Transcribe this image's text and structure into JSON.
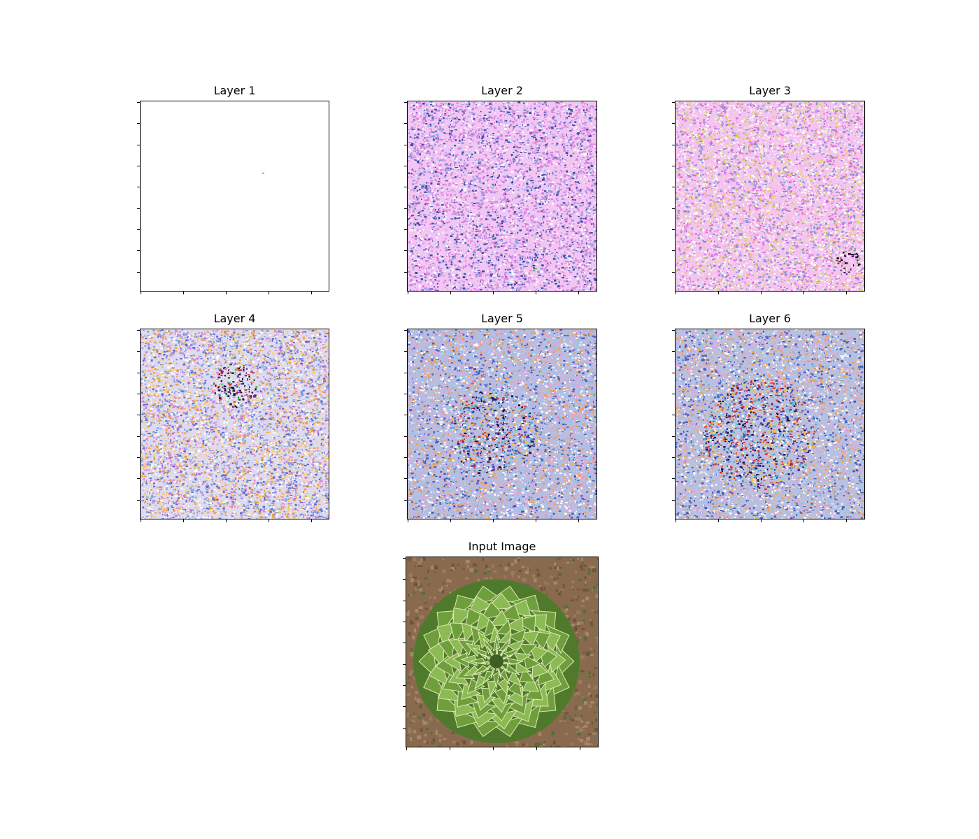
{
  "figure": {
    "panels": [
      {
        "id": "layer1",
        "title": "Layer 1",
        "style": "blank"
      },
      {
        "id": "layer2",
        "title": "Layer 2",
        "style": "pink-noise"
      },
      {
        "id": "layer3",
        "title": "Layer 3",
        "style": "pink-noise-dense"
      },
      {
        "id": "layer4",
        "title": "Layer 4",
        "style": "colorful-noise"
      },
      {
        "id": "layer5",
        "title": "Layer 5",
        "style": "colorful-rosette"
      },
      {
        "id": "layer6",
        "title": "Layer 6",
        "style": "colorful-rosette-large"
      },
      {
        "id": "input",
        "title": "Input Image",
        "style": "succulent-photo"
      }
    ],
    "colors": {
      "axes": "#000000",
      "background": "#ffffff",
      "pink_base": "#f0b8f0",
      "lavender_base": "#b8bde0",
      "soil": "#8a6a4f",
      "leaf_green": "#7fae4a"
    }
  }
}
